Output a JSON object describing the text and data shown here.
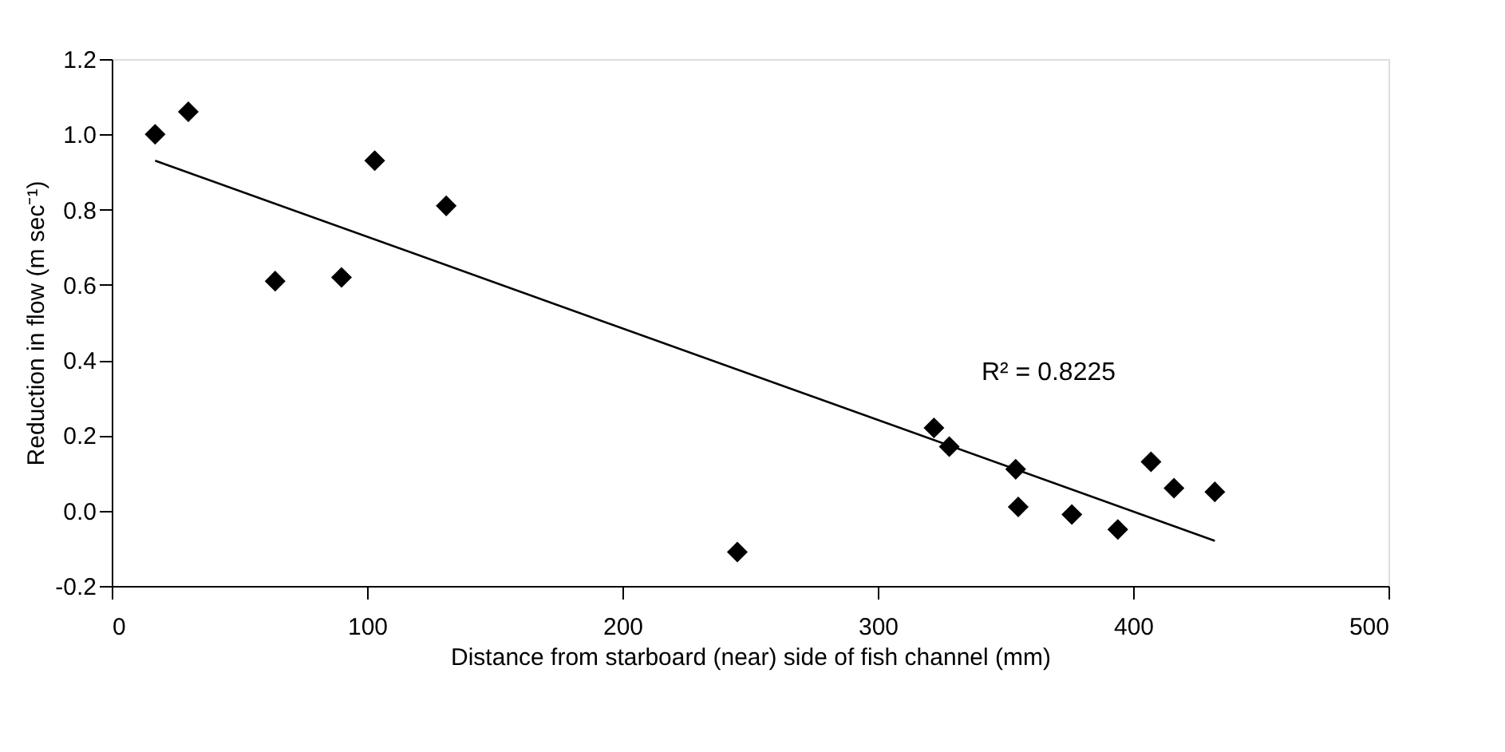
{
  "chart_data": {
    "type": "scatter",
    "xlabel": "Distance from starboard (near) side of fish channel (mm)",
    "ylabel": "Reduction in flow (m sec⁻¹)",
    "xlim": [
      0,
      500
    ],
    "xticks": [
      0,
      100,
      200,
      300,
      400,
      500
    ],
    "ylim": [
      -0.2,
      1.2
    ],
    "yticks": [
      {
        "value": -0.2,
        "label": "-0.2"
      },
      {
        "value": 0,
        "label": "0.0"
      },
      0.2,
      0.4,
      0.6,
      0.8,
      {
        "value": 1.0,
        "label": "1.0"
      },
      1.2
    ],
    "grid": false,
    "marker": "diamond",
    "series": [
      {
        "color": "#000000",
        "x": [
          17,
          30,
          64,
          90,
          103,
          131,
          245,
          322,
          328,
          354,
          355,
          376,
          394,
          407,
          416,
          432
        ],
        "values": [
          1.0,
          1.06,
          0.61,
          0.62,
          0.93,
          0.81,
          -0.11,
          0.22,
          0.17,
          0.11,
          0.01,
          -0.01,
          -0.05,
          0.13,
          0.06,
          0.05
        ]
      },
      {
        "type": "line",
        "color": "#000000",
        "line_style": "solid",
        "marker": "none",
        "x": [
          17,
          432
        ],
        "values": [
          0.93,
          -0.08
        ]
      }
    ],
    "annotations": [
      "R² = 0.8225"
    ]
  }
}
